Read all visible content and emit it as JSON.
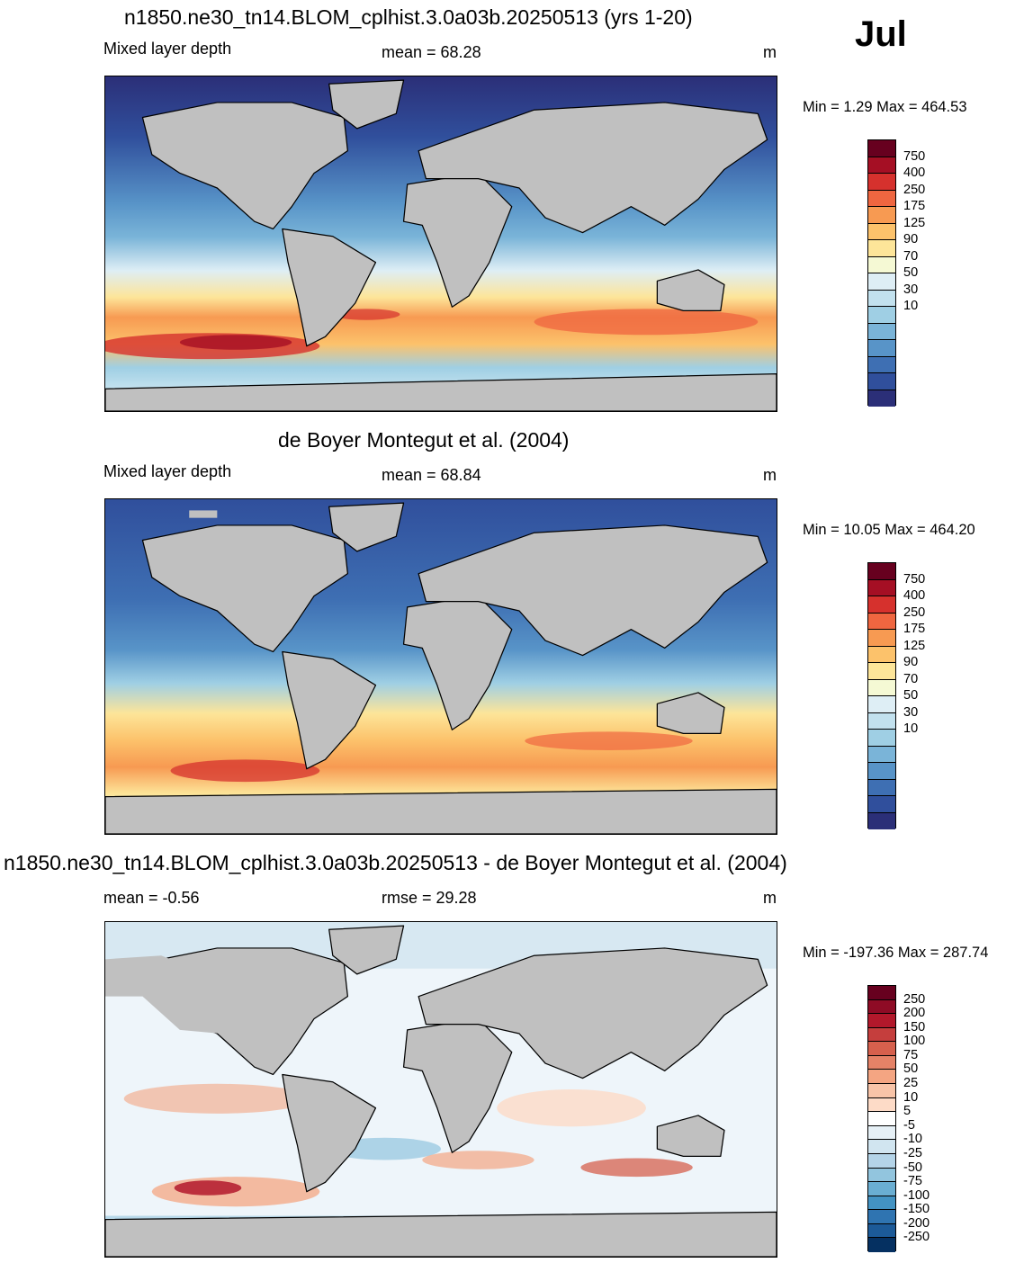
{
  "panel1": {
    "title": "n1850.ne30_tn14.BLOM_cplhist.3.0a03b.20250513 (yrs 1-20)",
    "left_label": "Mixed layer depth",
    "center_label": "mean =  68.28",
    "right_label": "m",
    "minmax": "Min =   1.29 Max = 464.53"
  },
  "month": "Jul",
  "panel2": {
    "title": "de Boyer Montegut et al. (2004)",
    "left_label": "Mixed layer depth",
    "center_label": "mean =  68.84",
    "right_label": "m",
    "minmax": "Min =  10.05 Max = 464.20"
  },
  "panel3": {
    "title": "n1850.ne30_tn14.BLOM_cplhist.3.0a03b.20250513 - de Boyer Montegut et al. (2004)",
    "left_label": "mean =  -0.56",
    "center_label": "rmse =  29.28",
    "right_label": "m",
    "minmax": "Min = -197.36 Max = 287.74"
  },
  "colorbar_mld": {
    "tick_labels": [
      "750",
      "400",
      "250",
      "175",
      "125",
      "90",
      "70",
      "50",
      "30",
      "10"
    ],
    "colors": [
      "#67001f",
      "#a50f24",
      "#d6312d",
      "#ef6640",
      "#f79a52",
      "#fcc26b",
      "#fde599",
      "#f5f9d4",
      "#deeef5",
      "#c2e1ee",
      "#9fcfe4",
      "#7ab4d8",
      "#5894c8",
      "#3e6fb3",
      "#304f9c",
      "#2b2f78"
    ]
  },
  "colorbar_diff": {
    "tick_labels": [
      "250",
      "200",
      "150",
      "100",
      "75",
      "50",
      "25",
      "10",
      "5",
      "-5",
      "-10",
      "-25",
      "-50",
      "-75",
      "-100",
      "-150",
      "-200",
      "-250"
    ],
    "colors": [
      "#67001f",
      "#8e0b25",
      "#b2182b",
      "#c53e3d",
      "#d6604d",
      "#e58267",
      "#f4a582",
      "#f8c4a8",
      "#fddbc7",
      "#ffffff",
      "#e6f0f6",
      "#d1e5f0",
      "#b4d4e8",
      "#92c5de",
      "#6aaed2",
      "#4393c3",
      "#2f74b1",
      "#1c5a98",
      "#053061"
    ]
  },
  "colors": {
    "land": "#c0c0c0",
    "map_border": "#000000"
  }
}
